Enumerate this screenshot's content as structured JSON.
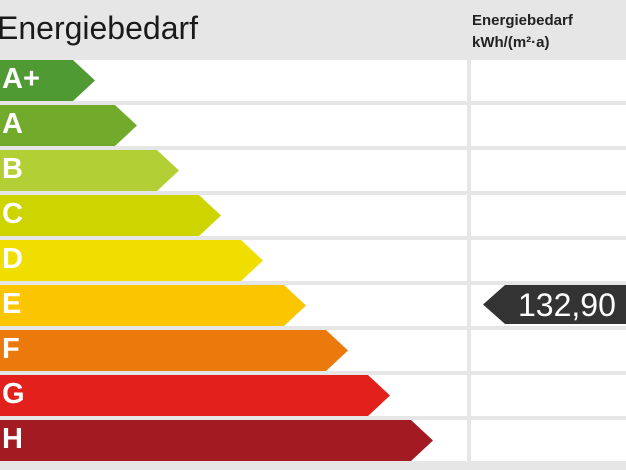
{
  "title": "Energiebedarf",
  "column_header": {
    "line1": "Energiebedarf",
    "line2": "kWh/(m²·a)"
  },
  "classes": [
    {
      "label": "A+",
      "color": "#4f9a32"
    },
    {
      "label": "A",
      "color": "#72ab2b"
    },
    {
      "label": "B",
      "color": "#b3cf36"
    },
    {
      "label": "C",
      "color": "#cdd400"
    },
    {
      "label": "D",
      "color": "#f0de00"
    },
    {
      "label": "E",
      "color": "#fbc500"
    },
    {
      "label": "F",
      "color": "#eb790c"
    },
    {
      "label": "G",
      "color": "#e2211c"
    },
    {
      "label": "H",
      "color": "#a31b22"
    }
  ],
  "marker": {
    "value": "132,90",
    "class": "E",
    "color": "#333333"
  }
}
